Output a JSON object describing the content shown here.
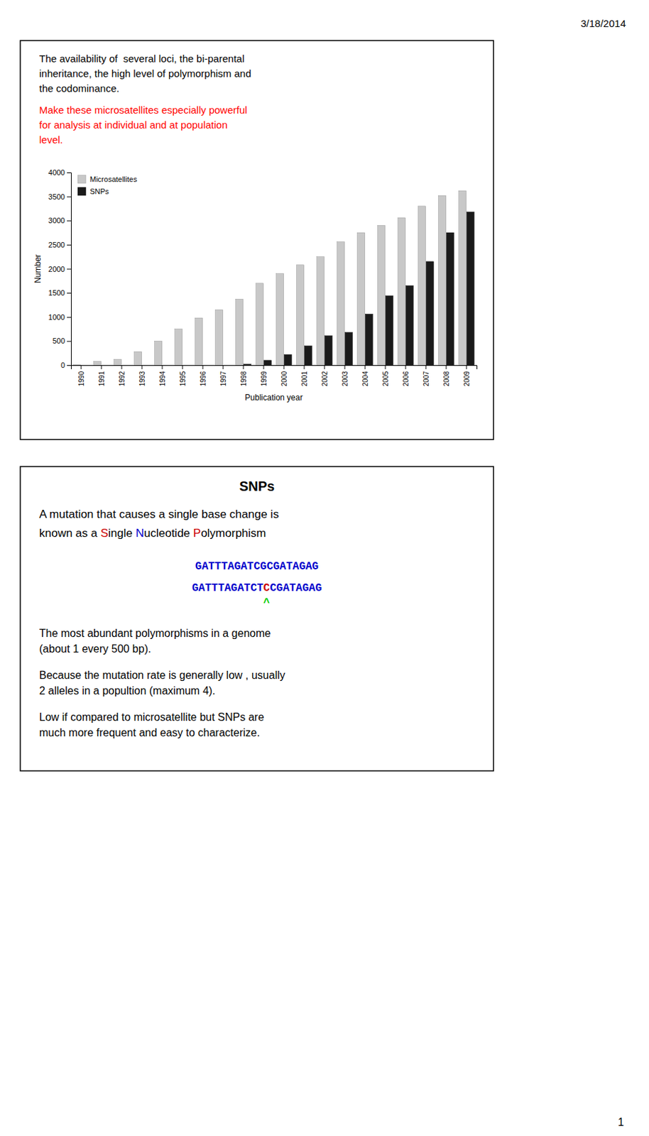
{
  "date_label": "3/18/2014",
  "page_number": "1",
  "slide1": {
    "text_black": [
      "The availability of  several loci, the bi-parental",
      "inheritance, the high level of polymorphism and",
      "the codominance."
    ],
    "text_red": [
      "Make these microsatellites especially powerful",
      "for analysis at individual and at population",
      "level."
    ],
    "text_red_color": "red"
  },
  "chart_data": {
    "type": "bar",
    "xlabel": "Publication year",
    "ylabel": "Number",
    "categories": [
      "1990",
      "1991",
      "1992",
      "1993",
      "1994",
      "1995",
      "1996",
      "1997",
      "1998",
      "1999",
      "2000",
      "2001",
      "2002",
      "2003",
      "2004",
      "2005",
      "2006",
      "2007",
      "2008",
      "2009"
    ],
    "series": [
      {
        "name": "Microsatellites",
        "color": "#c8c8c8",
        "values": [
          10,
          80,
          120,
          280,
          500,
          750,
          980,
          1150,
          1370,
          1700,
          1900,
          2080,
          2250,
          2560,
          2750,
          2900,
          3060,
          3300,
          3520,
          3620
        ]
      },
      {
        "name": "SNPs",
        "color": "#1a1a1a",
        "values": [
          0,
          0,
          0,
          0,
          0,
          0,
          0,
          0,
          20,
          100,
          220,
          400,
          610,
          680,
          1060,
          1440,
          1650,
          2150,
          2750,
          3180
        ]
      }
    ],
    "ylim": [
      0,
      4000
    ],
    "yticks": [
      0,
      500,
      1000,
      1500,
      2000,
      2500,
      3000,
      3500,
      4000
    ],
    "legend": "upper left"
  },
  "slide2": {
    "title": "SNPs",
    "line1a": "A mutation that causes a single base change is",
    "line1b_parts": [
      {
        "text": "known as a ",
        "color": "black"
      },
      {
        "text": "S",
        "color": "#cc0000"
      },
      {
        "text": "ingle ",
        "color": "black"
      },
      {
        "text": "N",
        "color": "#0000cc"
      },
      {
        "text": "ucleotide ",
        "color": "black"
      },
      {
        "text": "P",
        "color": "#cc0000"
      },
      {
        "text": "olymorphism",
        "color": "black"
      }
    ],
    "seq1": "GATTTAGATCGCGATAGAG",
    "seq2_pre": "GATTTAGATCT",
    "seq2_change": "C",
    "seq2_post": "CGATAGAG",
    "seq_color": "#0000cc",
    "seq_change_color": "#cc0000",
    "caret": "^",
    "caret_color": "#00cc00",
    "para1": [
      "The most abundant polymorphisms in a genome",
      "(about 1 every 500 bp)."
    ],
    "para2": [
      "Because the mutation rate is generally low , usually",
      "2 alleles in a popultion (maximum 4)."
    ],
    "para3": [
      "Low if compared to microsatellite but SNPs are",
      "much more frequent and easy to characterize."
    ]
  }
}
